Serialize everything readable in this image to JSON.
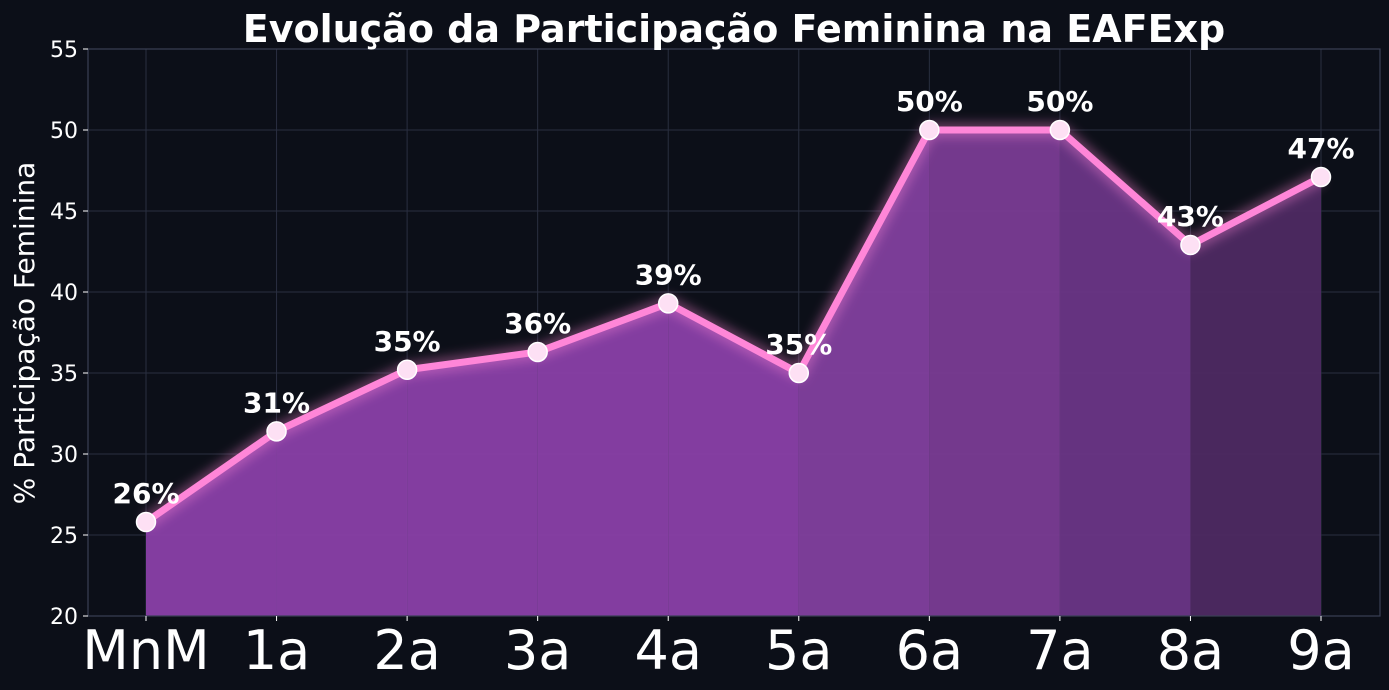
{
  "chart_data": {
    "type": "area",
    "title": "Evolução da Participação Feminina na EAFExp",
    "xlabel": "",
    "ylabel": "% Participação Feminina",
    "categories": [
      "MnM",
      "1a",
      "2a",
      "3a",
      "4a",
      "5a",
      "6a",
      "7a",
      "8a",
      "9a"
    ],
    "series": [
      {
        "values": [
          25.8,
          31.4,
          35.2,
          36.3,
          39.3,
          35.0,
          50.0,
          50.0,
          42.9,
          47.1
        ],
        "labels": [
          "26%",
          "31%",
          "35%",
          "36%",
          "39%",
          "35%",
          "50%",
          "50%",
          "43%",
          "47%"
        ]
      }
    ],
    "ylim": [
      20,
      55
    ],
    "yticks": [
      "20",
      "25",
      "30",
      "35",
      "40",
      "45",
      "50",
      "55"
    ],
    "grid": true,
    "legend": "none",
    "colors": {
      "background": "#0c0f18",
      "line": "#ff86d8",
      "marker_fill": "#fde0f4",
      "fill_early": "#8a40a8",
      "fill_mid": "#7a3c94",
      "fill_late": "#4e2a62",
      "grid": "#2a2f40"
    }
  }
}
